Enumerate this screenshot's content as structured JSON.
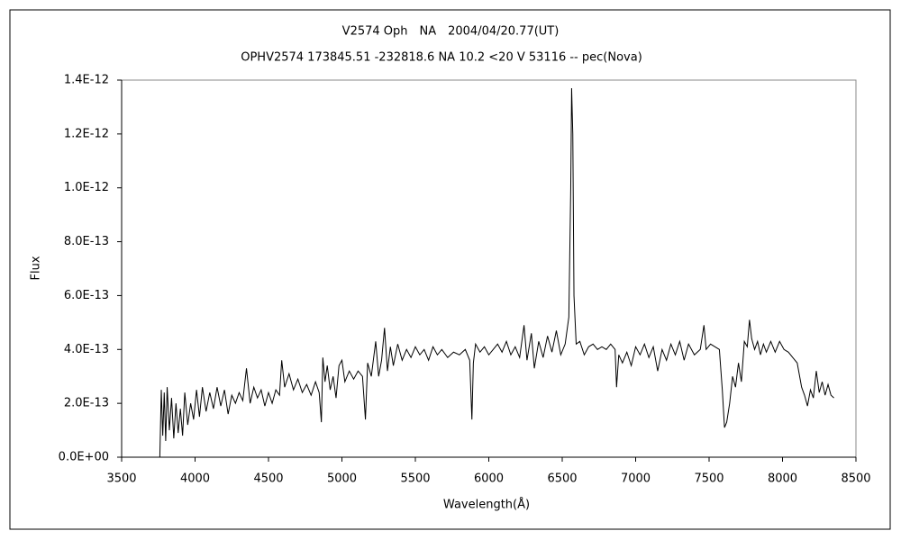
{
  "chart_data": {
    "type": "line",
    "title": "V2574 Oph　NA　2004/04/20.77(UT)",
    "subtitle": "OPHV2574 173845.51 -232818.6 NA 10.2 <20 V 53116 -- pec(Nova)",
    "xlabel": "Wavelength(Å)",
    "ylabel": "Flux",
    "color": "#000000",
    "grid": false,
    "xlim": [
      3500,
      8500
    ],
    "xticks": [
      3500,
      4000,
      4500,
      5000,
      5500,
      6000,
      6500,
      7000,
      7500,
      8000,
      8500
    ],
    "ylim": [
      0,
      1.4e-12
    ],
    "yticks": [
      {
        "value": 0,
        "label": "0.0E+00"
      },
      {
        "value": 2e-13,
        "label": "2.0E-13"
      },
      {
        "value": 4e-13,
        "label": "4.0E-13"
      },
      {
        "value": 6e-13,
        "label": "6.0E-13"
      },
      {
        "value": 8e-13,
        "label": "8.0E-13"
      },
      {
        "value": 1e-12,
        "label": "1.0E-12"
      },
      {
        "value": 1.2e-12,
        "label": "1.2E-12"
      },
      {
        "value": 1.4e-12,
        "label": "1.4E-12"
      }
    ],
    "x": [
      3760,
      3770,
      3780,
      3790,
      3800,
      3810,
      3825,
      3840,
      3855,
      3870,
      3885,
      3900,
      3915,
      3930,
      3950,
      3970,
      3990,
      4010,
      4030,
      4050,
      4075,
      4100,
      4125,
      4150,
      4175,
      4200,
      4225,
      4250,
      4275,
      4300,
      4325,
      4350,
      4375,
      4400,
      4425,
      4450,
      4475,
      4500,
      4525,
      4550,
      4575,
      4590,
      4610,
      4640,
      4670,
      4700,
      4730,
      4760,
      4790,
      4820,
      4845,
      4860,
      4870,
      4885,
      4900,
      4920,
      4940,
      4960,
      4980,
      5000,
      5020,
      5050,
      5080,
      5110,
      5140,
      5160,
      5175,
      5200,
      5230,
      5250,
      5270,
      5290,
      5310,
      5330,
      5350,
      5380,
      5410,
      5440,
      5470,
      5500,
      5530,
      5560,
      5590,
      5620,
      5650,
      5680,
      5720,
      5760,
      5800,
      5840,
      5870,
      5885,
      5895,
      5910,
      5940,
      5970,
      6000,
      6030,
      6060,
      6090,
      6120,
      6150,
      6180,
      6210,
      6240,
      6260,
      6290,
      6310,
      6340,
      6370,
      6400,
      6430,
      6460,
      6490,
      6520,
      6545,
      6558,
      6564,
      6572,
      6580,
      6595,
      6620,
      6650,
      6680,
      6710,
      6740,
      6770,
      6800,
      6830,
      6860,
      6870,
      6885,
      6910,
      6940,
      6970,
      7000,
      7030,
      7060,
      7090,
      7120,
      7150,
      7180,
      7210,
      7240,
      7270,
      7300,
      7330,
      7360,
      7400,
      7440,
      7465,
      7480,
      7510,
      7540,
      7570,
      7590,
      7605,
      7620,
      7640,
      7660,
      7680,
      7700,
      7720,
      7740,
      7760,
      7775,
      7790,
      7810,
      7830,
      7850,
      7870,
      7890,
      7920,
      7950,
      7980,
      8010,
      8040,
      8070,
      8100,
      8130,
      8150,
      8170,
      8190,
      8210,
      8230,
      8250,
      8270,
      8290,
      8310,
      8330,
      8350
    ],
    "values": [
      0,
      2.5e-13,
      8e-14,
      2.4e-13,
      6e-14,
      2.6e-13,
      1e-13,
      2.2e-13,
      7e-14,
      2e-13,
      9e-14,
      1.8e-13,
      8e-14,
      2.4e-13,
      1.2e-13,
      2e-13,
      1.4e-13,
      2.5e-13,
      1.5e-13,
      2.6e-13,
      1.7e-13,
      2.4e-13,
      1.8e-13,
      2.6e-13,
      1.9e-13,
      2.5e-13,
      1.6e-13,
      2.3e-13,
      2e-13,
      2.4e-13,
      2.1e-13,
      3.3e-13,
      2e-13,
      2.6e-13,
      2.2e-13,
      2.5e-13,
      1.9e-13,
      2.4e-13,
      2e-13,
      2.5e-13,
      2.3e-13,
      3.6e-13,
      2.6e-13,
      3.1e-13,
      2.5e-13,
      2.9e-13,
      2.4e-13,
      2.7e-13,
      2.3e-13,
      2.8e-13,
      2.4e-13,
      1.3e-13,
      3.7e-13,
      2.8e-13,
      3.4e-13,
      2.5e-13,
      3e-13,
      2.2e-13,
      3.4e-13,
      3.6e-13,
      2.8e-13,
      3.2e-13,
      2.9e-13,
      3.2e-13,
      3e-13,
      1.4e-13,
      3.5e-13,
      3e-13,
      4.3e-13,
      3e-13,
      3.6e-13,
      4.8e-13,
      3.2e-13,
      4.1e-13,
      3.4e-13,
      4.2e-13,
      3.6e-13,
      4e-13,
      3.7e-13,
      4.1e-13,
      3.8e-13,
      4e-13,
      3.6e-13,
      4.1e-13,
      3.8e-13,
      4e-13,
      3.7e-13,
      3.9e-13,
      3.8e-13,
      4e-13,
      3.6e-13,
      1.4e-13,
      3.5e-13,
      4.2e-13,
      3.9e-13,
      4.1e-13,
      3.8e-13,
      4e-13,
      4.2e-13,
      3.9e-13,
      4.3e-13,
      3.8e-13,
      4.1e-13,
      3.7e-13,
      4.9e-13,
      3.6e-13,
      4.6e-13,
      3.3e-13,
      4.3e-13,
      3.7e-13,
      4.5e-13,
      3.9e-13,
      4.7e-13,
      3.8e-13,
      4.2e-13,
      5.2e-13,
      1e-12,
      1.37e-12,
      1.2e-12,
      6e-13,
      4.2e-13,
      4.3e-13,
      3.8e-13,
      4.1e-13,
      4.2e-13,
      4e-13,
      4.1e-13,
      4e-13,
      4.2e-13,
      4e-13,
      2.6e-13,
      3.8e-13,
      3.5e-13,
      3.9e-13,
      3.4e-13,
      4.1e-13,
      3.8e-13,
      4.2e-13,
      3.7e-13,
      4.1e-13,
      3.2e-13,
      4e-13,
      3.6e-13,
      4.2e-13,
      3.8e-13,
      4.3e-13,
      3.6e-13,
      4.2e-13,
      3.8e-13,
      4e-13,
      4.9e-13,
      4e-13,
      4.2e-13,
      4.1e-13,
      4e-13,
      2.5e-13,
      1.1e-13,
      1.3e-13,
      2e-13,
      3e-13,
      2.6e-13,
      3.5e-13,
      2.8e-13,
      4.3e-13,
      4.1e-13,
      5.1e-13,
      4.4e-13,
      4e-13,
      4.3e-13,
      3.8e-13,
      4.2e-13,
      3.9e-13,
      4.3e-13,
      3.9e-13,
      4.3e-13,
      4e-13,
      3.9e-13,
      3.7e-13,
      3.5e-13,
      2.6e-13,
      2.3e-13,
      1.9e-13,
      2.5e-13,
      2.2e-13,
      3.2e-13,
      2.4e-13,
      2.8e-13,
      2.3e-13,
      2.7e-13,
      2.3e-13,
      2.2e-13
    ]
  }
}
